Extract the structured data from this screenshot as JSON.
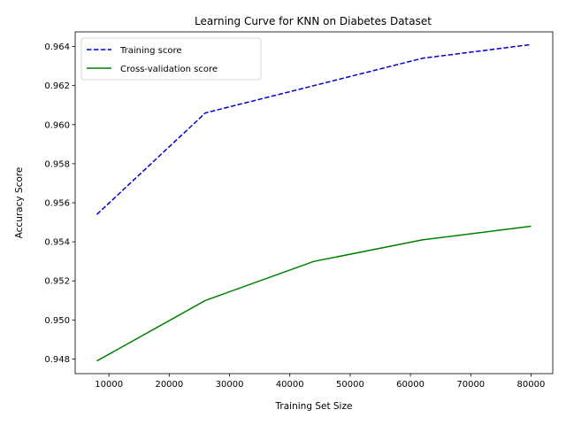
{
  "chart_data": {
    "type": "line",
    "title": "Learning Curve for KNN on Diabetes Dataset",
    "xlabel": "Training Set Size",
    "ylabel": "Accuracy Score",
    "xlim": [
      4400,
      83600
    ],
    "ylim": [
      0.94725,
      0.96475
    ],
    "xticks": [
      10000,
      20000,
      30000,
      40000,
      50000,
      60000,
      70000,
      80000
    ],
    "yticks": [
      0.948,
      0.95,
      0.952,
      0.954,
      0.956,
      0.958,
      0.96,
      0.962,
      0.964
    ],
    "grid": false,
    "legend_position": "top-left",
    "series": [
      {
        "name": "Training score",
        "color": "#0000cc",
        "linestyle": "dashed",
        "x": [
          8000,
          26000,
          44000,
          62000,
          80000
        ],
        "y": [
          0.9554,
          0.9606,
          0.962,
          0.9634,
          0.9641
        ]
      },
      {
        "name": "Cross-validation score",
        "color": "#008000",
        "linestyle": "solid",
        "x": [
          8000,
          26000,
          44000,
          62000,
          80000
        ],
        "y": [
          0.9479,
          0.951,
          0.953,
          0.9541,
          0.9548
        ]
      }
    ]
  }
}
